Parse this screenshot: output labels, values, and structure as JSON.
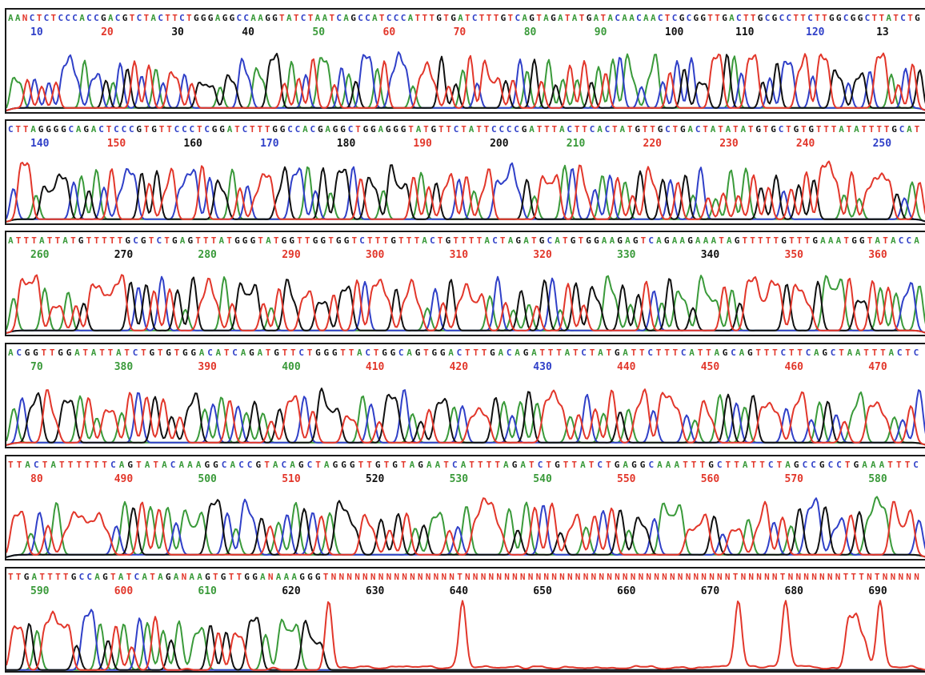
{
  "colors": {
    "A": "#3a9a3a",
    "C": "#3040c8",
    "G": "#111111",
    "T": "#e2372b",
    "N": "#e2372b"
  },
  "chart_data": {
    "type": "line",
    "title": "",
    "xlabel": "",
    "ylabel": "",
    "series": [
      {
        "base": "A",
        "color": "#3a9a3a"
      },
      {
        "base": "C",
        "color": "#3040c8"
      },
      {
        "base": "G",
        "color": "#111111"
      },
      {
        "base": "T",
        "color": "#e2372b"
      }
    ],
    "panels": [
      {
        "sequence": "AANCTCTCCCACCGACGTCTACTTCTGGGAGGCCAAGGTATCTAATCAGCCATCCCATTTGTGATCTTTGTCAGTAGATATGATACAACAACTCGCGGTTGACTTGCGCCTTCTTGGCGGCTTATCTG",
        "ticks": [
          {
            "label": "10",
            "base": "C"
          },
          {
            "label": "20",
            "base": "T"
          },
          {
            "label": "30",
            "base": "G"
          },
          {
            "label": "40",
            "base": "G"
          },
          {
            "label": "50",
            "base": "A"
          },
          {
            "label": "60",
            "base": "T"
          },
          {
            "label": "70",
            "base": "T"
          },
          {
            "label": "80",
            "base": "A"
          },
          {
            "label": "90",
            "base": "A"
          },
          {
            "label": "100",
            "base": "G"
          },
          {
            "label": "110",
            "base": "G"
          },
          {
            "label": "120",
            "base": "C"
          },
          {
            "label": "13",
            "base": "G"
          }
        ]
      },
      {
        "sequence": "CTTAGGGGCAGACTCCCGTGTTCCCTCGGATCTTTGGCCACGAGGCTGGAGGGTATGTTCTATTCCCCGATTTACTTCACTATGTTGCTGACTATATATGTGCTGTGTTTATATTTTGCAT",
        "ticks": [
          {
            "label": "140",
            "base": "C"
          },
          {
            "label": "150",
            "base": "T"
          },
          {
            "label": "160",
            "base": "G"
          },
          {
            "label": "170",
            "base": "C"
          },
          {
            "label": "180",
            "base": "G"
          },
          {
            "label": "190",
            "base": "T"
          },
          {
            "label": "200",
            "base": "G"
          },
          {
            "label": "210",
            "base": "A"
          },
          {
            "label": "220",
            "base": "T"
          },
          {
            "label": "230",
            "base": "T"
          },
          {
            "label": "240",
            "base": "T"
          },
          {
            "label": "250",
            "base": "C"
          }
        ]
      },
      {
        "sequence": "ATTTATTATGTTTTTGCGTCTGAGTTTATGGGTATGGTTGGTGGTCTTTGTTTACTGTTTTACTAGATGCATGTGGAAGAGTCAGAAGAAATAGTTTTTGTTTGAAATGGTATACCA",
        "ticks": [
          {
            "label": "260",
            "base": "A"
          },
          {
            "label": "270",
            "base": "G"
          },
          {
            "label": "280",
            "base": "A"
          },
          {
            "label": "290",
            "base": "T"
          },
          {
            "label": "300",
            "base": "T"
          },
          {
            "label": "310",
            "base": "T"
          },
          {
            "label": "320",
            "base": "T"
          },
          {
            "label": "330",
            "base": "A"
          },
          {
            "label": "340",
            "base": "G"
          },
          {
            "label": "350",
            "base": "T"
          },
          {
            "label": "360",
            "base": "T"
          }
        ]
      },
      {
        "sequence": "ACGGTTGGATATTATCTGTGTGGACATCAGATGTTCTGGGTTACTGGCAGTGGACTTTGACAGATTTATCTATGATTCTTTCATTAGCAGTTTCTTCAGCTAATTTACTC",
        "ticks": [
          {
            "label": "70",
            "base": "A"
          },
          {
            "label": "380",
            "base": "A"
          },
          {
            "label": "390",
            "base": "T"
          },
          {
            "label": "400",
            "base": "A"
          },
          {
            "label": "410",
            "base": "T"
          },
          {
            "label": "420",
            "base": "T"
          },
          {
            "label": "430",
            "base": "C"
          },
          {
            "label": "440",
            "base": "T"
          },
          {
            "label": "450",
            "base": "T"
          },
          {
            "label": "460",
            "base": "T"
          },
          {
            "label": "470",
            "base": "T"
          }
        ]
      },
      {
        "sequence": "TTACTATTTTTTCAGTATACAAAGGCACCGTACAGCTAGGGTTGTGTAGAATCATTTTAGATCTGTTATCTGAGGCAAATTTGCTTATTCTAGCCGCCTGAAATTTC",
        "ticks": [
          {
            "label": "80",
            "base": "T"
          },
          {
            "label": "490",
            "base": "T"
          },
          {
            "label": "500",
            "base": "A"
          },
          {
            "label": "510",
            "base": "T"
          },
          {
            "label": "520",
            "base": "G"
          },
          {
            "label": "530",
            "base": "A"
          },
          {
            "label": "540",
            "base": "A"
          },
          {
            "label": "550",
            "base": "T"
          },
          {
            "label": "560",
            "base": "T"
          },
          {
            "label": "570",
            "base": "T"
          },
          {
            "label": "580",
            "base": "A"
          }
        ]
      },
      {
        "sequence": "TTGATTTTGCCAGTATCATAGANAAGTGTTGGANAAAGGGTNNNNNNNNNNNNNNNNTNNNNNNNNNNNNNNNNNNNNNNNNNNNNNNNNNNTNNNNNTNNNNNNNTTTNTNNNNN",
        "ticks": [
          {
            "label": "590",
            "base": "A"
          },
          {
            "label": "600",
            "base": "T"
          },
          {
            "label": "610",
            "base": "A"
          },
          {
            "label": "620",
            "base": "G"
          },
          {
            "label": "630",
            "base": "G"
          },
          {
            "label": "640",
            "base": "G"
          },
          {
            "label": "650",
            "base": "G"
          },
          {
            "label": "660",
            "base": "G"
          },
          {
            "label": "670",
            "base": "G"
          },
          {
            "label": "680",
            "base": "G"
          },
          {
            "label": "690",
            "base": "G"
          }
        ]
      }
    ]
  }
}
